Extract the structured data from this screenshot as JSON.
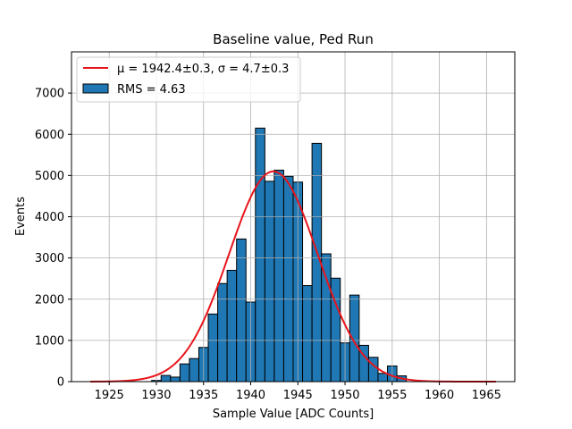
{
  "chart_data": {
    "type": "bar",
    "title": "Baseline value, Ped Run",
    "xlabel": "Sample Value [ADC Counts]",
    "ylabel": "Events",
    "xlim": [
      1921,
      1968
    ],
    "ylim": [
      0,
      8000
    ],
    "x_ticks": [
      1925,
      1930,
      1935,
      1940,
      1945,
      1950,
      1955,
      1960,
      1965
    ],
    "y_ticks": [
      0,
      1000,
      2000,
      3000,
      4000,
      5000,
      6000,
      7000
    ],
    "grid": true,
    "legend_placement": "top-left",
    "bin_width": 1,
    "bin_edges_start": [
      1929.5,
      1930.5,
      1931.5,
      1932.5,
      1933.5,
      1934.5,
      1935.5,
      1936.5,
      1937.5,
      1938.5,
      1939.5,
      1940.5,
      1941.5,
      1942.5,
      1943.5,
      1944.5,
      1945.5,
      1946.5,
      1947.5,
      1948.5,
      1949.5,
      1950.5,
      1951.5,
      1952.5,
      1953.5,
      1954.5,
      1955.5
    ],
    "values": [
      30,
      150,
      110,
      430,
      560,
      830,
      1640,
      2380,
      2700,
      3460,
      1930,
      6150,
      4860,
      5130,
      4980,
      4840,
      2330,
      5780,
      3100,
      2510,
      940,
      2100,
      880,
      590,
      200,
      380,
      140
    ],
    "series": [
      {
        "name": "RMS = 4.63",
        "kind": "histogram",
        "color": "#1f77b4",
        "edgecolor": "#000000"
      },
      {
        "name": "μ = 1942.4±0.3, σ = 4.7±0.3",
        "kind": "gaussian-fit",
        "color": "#e8141b",
        "mu": 1942.4,
        "sigma": 4.7,
        "amplitude": 5100,
        "x_range": [
          1923,
          1966
        ]
      }
    ]
  }
}
